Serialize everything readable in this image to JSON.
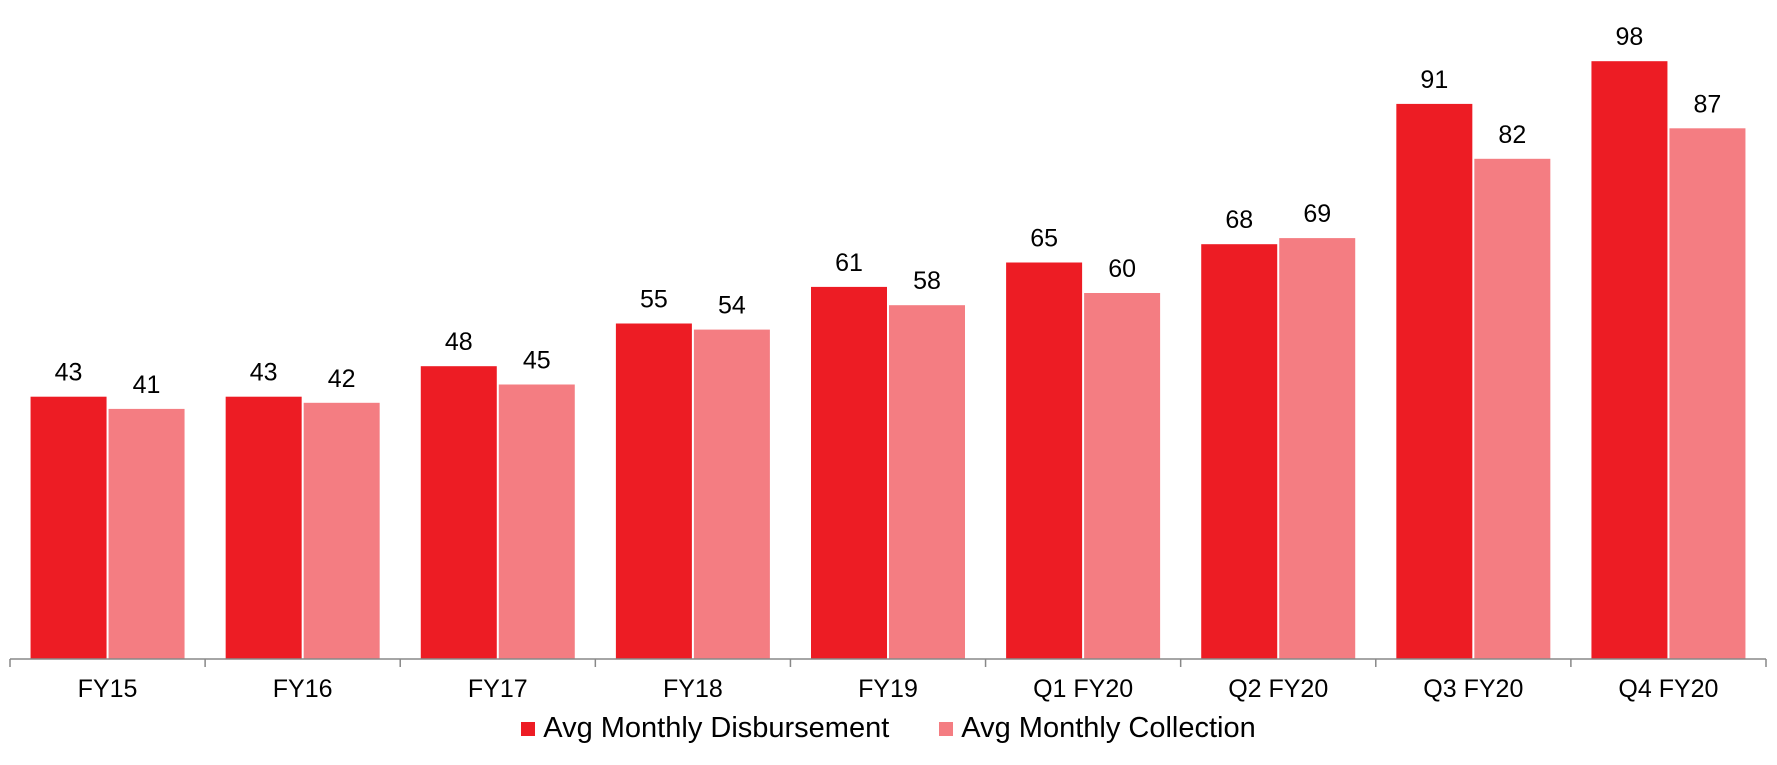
{
  "chart_data": {
    "type": "bar",
    "categories": [
      "FY15",
      "FY16",
      "FY17",
      "FY18",
      "FY19",
      "Q1 FY20",
      "Q2 FY20",
      "Q3 FY20",
      "Q4 FY20"
    ],
    "series": [
      {
        "name": "Avg Monthly Disbursement",
        "values": [
          43,
          43,
          48,
          55,
          61,
          65,
          68,
          91,
          98
        ],
        "color": "#ed1c24"
      },
      {
        "name": "Avg Monthly Collection",
        "values": [
          41,
          42,
          45,
          54,
          58,
          60,
          69,
          82,
          87
        ],
        "color": "#f47d82"
      }
    ],
    "title": "",
    "xlabel": "",
    "ylabel": "",
    "ylim": [
      0,
      100
    ],
    "grid": false,
    "data_labels": true,
    "legend_position": "bottom"
  }
}
